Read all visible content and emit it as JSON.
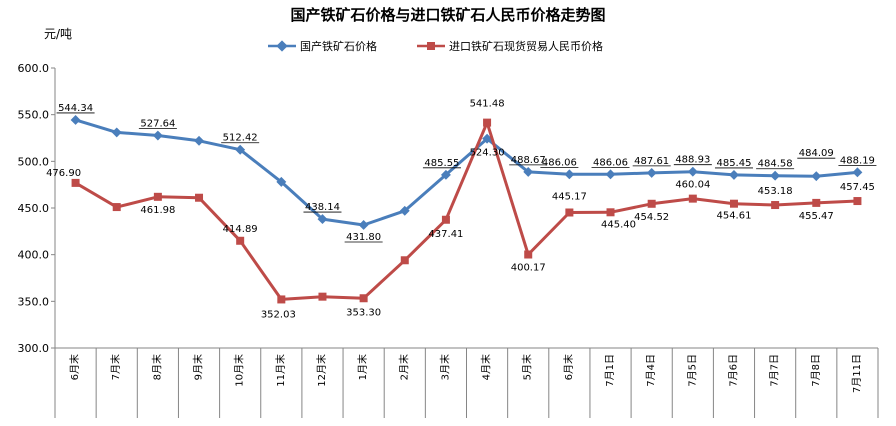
{
  "chart_data": {
    "type": "line",
    "title": "国产铁矿石价格与进口铁矿石人民币价格走势图",
    "ylabel": "元/吨",
    "xlabel": "",
    "ylim": [
      300,
      600
    ],
    "yticks": [
      "300.0",
      "350.0",
      "400.0",
      "450.0",
      "500.0",
      "550.0",
      "600.0"
    ],
    "grid": false,
    "legend_position": "top",
    "categories": [
      "6月末",
      "7月末",
      "8月末",
      "9月末",
      "10月末",
      "11月末",
      "12月末",
      "1月末",
      "2月末",
      "3月末",
      "4月末",
      "5月末",
      "6月末",
      "7月1日",
      "7月4日",
      "7月5日",
      "7月6日",
      "7月7日",
      "7月8日",
      "7月11日"
    ],
    "series": [
      {
        "name": "国产铁矿石价格",
        "color": "#4a7ebb",
        "marker": "diamond",
        "values": [
          544.34,
          531,
          527.64,
          522,
          512.42,
          478,
          438.14,
          431.8,
          447,
          485.55,
          524.3,
          488.67,
          486.06,
          486.06,
          487.61,
          488.93,
          485.45,
          484.58,
          484.09,
          488.19
        ],
        "labels": [
          "544.34",
          "",
          "527.64",
          "",
          "512.42",
          "",
          "438.14",
          "431.80",
          "",
          "485.55",
          "524.30",
          "488.67",
          "486.06",
          "486.06",
          "487.61",
          "488.93",
          "485.45",
          "484.58",
          "484.09",
          "488.19"
        ]
      },
      {
        "name": "进口铁矿石现货贸易人民币价格",
        "color": "#be4b48",
        "marker": "square",
        "values": [
          476.9,
          451,
          461.98,
          461,
          414.89,
          352.03,
          355,
          353.3,
          394,
          437.41,
          541.48,
          400.17,
          445.17,
          445.4,
          454.52,
          460.04,
          454.61,
          453.18,
          455.47,
          457.45
        ],
        "labels": [
          "476.90",
          "",
          "461.98",
          "",
          "414.89",
          "352.03",
          "",
          "353.30",
          "",
          "437.41",
          "541.48",
          "400.17",
          "445.17",
          "445.40",
          "454.52",
          "460.04",
          "454.61",
          "453.18",
          "455.47",
          "457.45"
        ]
      }
    ]
  }
}
